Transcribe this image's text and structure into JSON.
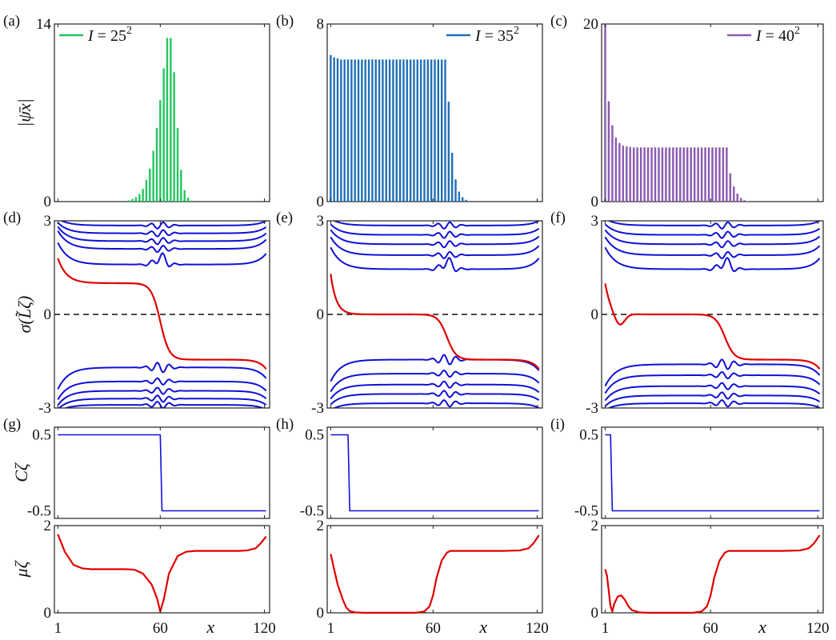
{
  "chart_data": [
    {
      "id": "a",
      "panel_label": "(a)",
      "type": "bar",
      "color": "#22c55e",
      "legend": {
        "symbol": "I",
        "text": " = 25",
        "sup": "2",
        "position": "top-left"
      },
      "ylabel": "|ψ̄x|",
      "ylim": [
        0,
        14
      ],
      "ytick_labels": [
        "0",
        "14"
      ],
      "xlim": [
        -1,
        123
      ],
      "x": [
        40,
        42,
        44,
        46,
        48,
        50,
        52,
        54,
        56,
        58,
        60,
        62,
        64,
        66,
        68,
        70,
        72,
        74,
        76,
        78
      ],
      "values": [
        0.05,
        0.1,
        0.2,
        0.35,
        0.6,
        1.0,
        1.7,
        2.6,
        4.0,
        5.8,
        8.0,
        10.5,
        12.9,
        12.9,
        10.2,
        5.8,
        2.5,
        0.9,
        0.3,
        0.08
      ]
    },
    {
      "id": "b",
      "panel_label": "(b)",
      "type": "bar",
      "color": "#1f6fb5",
      "legend": {
        "symbol": "I",
        "text": " = 35",
        "sup": "2",
        "position": "top-right"
      },
      "ylim": [
        0,
        8
      ],
      "ytick_labels": [
        "0",
        "8"
      ],
      "xlim": [
        -1,
        123
      ],
      "x": [
        1,
        3,
        5,
        7,
        9,
        11,
        13,
        15,
        17,
        19,
        21,
        23,
        25,
        27,
        29,
        31,
        33,
        35,
        37,
        39,
        41,
        43,
        45,
        47,
        49,
        51,
        53,
        55,
        57,
        59,
        61,
        63,
        65,
        67,
        69,
        71,
        73,
        75,
        77,
        79
      ],
      "values": [
        6.6,
        6.5,
        6.45,
        6.4,
        6.4,
        6.4,
        6.4,
        6.4,
        6.4,
        6.4,
        6.4,
        6.4,
        6.4,
        6.4,
        6.4,
        6.4,
        6.4,
        6.4,
        6.4,
        6.4,
        6.4,
        6.4,
        6.4,
        6.4,
        6.4,
        6.4,
        6.4,
        6.4,
        6.4,
        6.4,
        6.4,
        6.4,
        6.4,
        6.4,
        4.5,
        2.2,
        1.0,
        0.45,
        0.2,
        0.08
      ]
    },
    {
      "id": "c",
      "panel_label": "(c)",
      "type": "bar",
      "color": "#8c5bb0",
      "legend": {
        "symbol": "I",
        "text": " = 40",
        "sup": "2",
        "position": "top-right"
      },
      "ylim": [
        0,
        20
      ],
      "ytick_labels": [
        "0",
        "20"
      ],
      "xlim": [
        -1,
        123
      ],
      "x": [
        1,
        3,
        5,
        7,
        9,
        11,
        13,
        15,
        17,
        19,
        21,
        23,
        25,
        27,
        29,
        31,
        33,
        35,
        37,
        39,
        41,
        43,
        45,
        47,
        49,
        51,
        53,
        55,
        57,
        59,
        61,
        63,
        65,
        67,
        69,
        71,
        73,
        75,
        77,
        79,
        81
      ],
      "values": [
        20,
        11.3,
        8.6,
        7.2,
        6.6,
        6.3,
        6.2,
        6.15,
        6.1,
        6.1,
        6.1,
        6.1,
        6.1,
        6.1,
        6.1,
        6.1,
        6.1,
        6.1,
        6.1,
        6.1,
        6.1,
        6.1,
        6.1,
        6.1,
        6.1,
        6.1,
        6.1,
        6.1,
        6.1,
        6.1,
        6.1,
        6.1,
        6.1,
        6.1,
        6.1,
        3.2,
        1.7,
        0.9,
        0.4,
        0.15,
        0.05
      ]
    },
    {
      "id": "d",
      "panel_label": "(d)",
      "type": "line",
      "ylabel": "σ(L̃ζ)",
      "ylim": [
        -3,
        3
      ],
      "ytick_labels": [
        "-3",
        "0",
        "3"
      ],
      "xlim": [
        -1,
        123
      ],
      "colors": {
        "bands": "#1010d8",
        "red": "#e00000",
        "zero_line": "#111111"
      },
      "red_curve": {
        "plateaus": [
          1.0,
          -1.45
        ],
        "start": 1.8,
        "end": -1.75,
        "transitions": [
          60
        ]
      },
      "band_levels_upper": [
        1.6,
        2.1,
        2.35,
        2.6,
        2.85
      ],
      "band_levels_lower": [
        -1.7,
        -2.15,
        -2.45,
        -2.7,
        -2.9
      ],
      "defect_x": 60
    },
    {
      "id": "e",
      "panel_label": "(e)",
      "type": "line",
      "ylim": [
        -3,
        3
      ],
      "ytick_labels": [
        "-3",
        "0",
        "3"
      ],
      "xlim": [
        -1,
        123
      ],
      "colors": {
        "bands": "#1010d8",
        "red": "#e00000",
        "zero_line": "#111111"
      },
      "red_curve": {
        "plateaus": [
          0.0,
          -1.45
        ],
        "start": 1.3,
        "end": -1.75,
        "transitions": [
          8,
          68
        ]
      },
      "band_levels_upper": [
        1.45,
        1.9,
        2.25,
        2.55,
        2.85
      ],
      "band_levels_lower": [
        -1.45,
        -1.9,
        -2.25,
        -2.55,
        -2.85
      ],
      "defect_x": 68
    },
    {
      "id": "f",
      "panel_label": "(f)",
      "type": "line",
      "ylim": [
        -3,
        3
      ],
      "ytick_labels": [
        "-3",
        "0",
        "3"
      ],
      "xlim": [
        -1,
        123
      ],
      "colors": {
        "bands": "#1010d8",
        "red": "#e00000",
        "zero_line": "#111111"
      },
      "red_curve": {
        "plateaus": [
          0.0,
          -1.45
        ],
        "start": 1.0,
        "end": -1.75,
        "transitions": [
          4,
          68
        ],
        "dip": -0.4
      },
      "band_levels_upper": [
        1.45,
        1.9,
        2.25,
        2.55,
        2.85
      ],
      "band_levels_lower": [
        -1.6,
        -1.95,
        -2.3,
        -2.6,
        -2.85
      ],
      "defect_x": 68
    },
    {
      "id": "g",
      "panel_label": "(g)",
      "type": "line",
      "ylabel": "Cζ",
      "color": "#1010d8",
      "ylim": [
        -0.6,
        0.6
      ],
      "ytick_labels": [
        "-0.5",
        "0.5"
      ],
      "xlim": [
        -1,
        123
      ],
      "x": [
        1,
        60,
        61,
        121
      ],
      "y": [
        0.5,
        0.5,
        -0.5,
        -0.5
      ]
    },
    {
      "id": "h",
      "panel_label": "(h)",
      "type": "line",
      "color": "#1010d8",
      "ylim": [
        -0.6,
        0.6
      ],
      "ytick_labels": [
        "-0.5",
        "0.5"
      ],
      "xlim": [
        -1,
        123
      ],
      "x": [
        1,
        11,
        12,
        121
      ],
      "y": [
        0.5,
        0.5,
        -0.5,
        -0.5
      ]
    },
    {
      "id": "i",
      "panel_label": "(i)",
      "type": "line",
      "color": "#1010d8",
      "ylim": [
        -0.6,
        0.6
      ],
      "ytick_labels": [
        "-0.5",
        "0.5"
      ],
      "xlim": [
        -1,
        123
      ],
      "x": [
        1,
        4,
        5,
        121
      ],
      "y": [
        0.5,
        0.5,
        -0.5,
        -0.5
      ]
    },
    {
      "id": "j",
      "type": "line",
      "ylabel": "μζ",
      "color": "#e00000",
      "ylim": [
        0,
        2
      ],
      "ytick_labels": [
        "0",
        "2"
      ],
      "xlim": [
        -1,
        123
      ],
      "xtick_labels": [
        "1",
        "60",
        "120"
      ],
      "xlabel": "x",
      "x": [
        1,
        5,
        10,
        15,
        20,
        25,
        30,
        35,
        40,
        45,
        50,
        55,
        58,
        60,
        62,
        65,
        70,
        75,
        80,
        85,
        90,
        95,
        100,
        105,
        110,
        115,
        118,
        121
      ],
      "y": [
        1.8,
        1.4,
        1.1,
        1.02,
        1.0,
        1.0,
        1.0,
        1.0,
        1.0,
        0.99,
        0.9,
        0.65,
        0.35,
        0.03,
        0.3,
        0.9,
        1.3,
        1.4,
        1.42,
        1.42,
        1.42,
        1.42,
        1.42,
        1.42,
        1.43,
        1.48,
        1.6,
        1.75
      ]
    },
    {
      "id": "k",
      "type": "line",
      "color": "#e00000",
      "ylim": [
        0,
        2
      ],
      "ytick_labels": [
        "0",
        "2"
      ],
      "xlim": [
        -1,
        123
      ],
      "xtick_labels": [
        "1",
        "60",
        "120"
      ],
      "xlabel": "x",
      "x": [
        1,
        3,
        5,
        8,
        10,
        12,
        15,
        20,
        30,
        40,
        50,
        55,
        58,
        60,
        62,
        65,
        68,
        70,
        75,
        80,
        90,
        100,
        110,
        115,
        118,
        121
      ],
      "y": [
        1.35,
        1.0,
        0.65,
        0.3,
        0.12,
        0.04,
        0.01,
        0.0,
        0.0,
        0.0,
        0.0,
        0.03,
        0.15,
        0.4,
        0.8,
        1.2,
        1.38,
        1.42,
        1.42,
        1.42,
        1.42,
        1.42,
        1.43,
        1.48,
        1.6,
        1.78
      ]
    },
    {
      "id": "l",
      "type": "line",
      "color": "#e00000",
      "ylim": [
        0,
        2
      ],
      "ytick_labels": [
        "0",
        "2"
      ],
      "xlim": [
        -1,
        123
      ],
      "xtick_labels": [
        "1",
        "60",
        "120"
      ],
      "xlabel": "x",
      "x": [
        1,
        2,
        3,
        4,
        5,
        6,
        8,
        10,
        12,
        14,
        16,
        20,
        25,
        30,
        40,
        50,
        55,
        58,
        60,
        62,
        65,
        68,
        70,
        75,
        80,
        90,
        100,
        110,
        115,
        118,
        121
      ],
      "y": [
        1.0,
        0.85,
        0.5,
        0.15,
        0.03,
        0.2,
        0.37,
        0.4,
        0.3,
        0.15,
        0.06,
        0.01,
        0.0,
        0.0,
        0.0,
        0.0,
        0.03,
        0.15,
        0.4,
        0.8,
        1.2,
        1.38,
        1.42,
        1.42,
        1.42,
        1.42,
        1.42,
        1.43,
        1.48,
        1.6,
        1.78
      ]
    }
  ]
}
